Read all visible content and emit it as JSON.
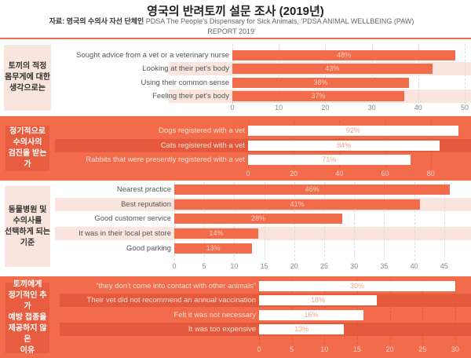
{
  "header": {
    "title": "영국의 반려토끼 설문 조사 (2019년)",
    "source_label": "자료: 영국의 수의사 자선 단체인",
    "source_text": "PDSA The People's Dispensary for Sick Animals, 'PDSA ANIMAL WELLBEING (PAW) REPORT 2019'"
  },
  "colors": {
    "accent": "#f26b4a",
    "light_band": "#fae5de",
    "dark_band": "#e55a3d"
  },
  "chart_data": [
    {
      "type": "bar",
      "orientation": "horizontal",
      "title": "토끼의 적정\n몸무게에 대한\n생각으로는",
      "categories": [
        "Sought advice from a vet or a veterinary nurse",
        "Looking at their pet's body",
        "Using their common sense",
        "Feeling their pet's body"
      ],
      "values": [
        48,
        43,
        38,
        37
      ],
      "labels": [
        "48%",
        "43%",
        "38%",
        "37%"
      ],
      "xlim": [
        0,
        50
      ],
      "ticks": [
        "0",
        "10",
        "20",
        "30",
        "40",
        "50"
      ],
      "tick_values": [
        0,
        10,
        20,
        30,
        40,
        50
      ]
    },
    {
      "type": "bar",
      "orientation": "horizontal",
      "title": "정기적으로\n수의사의\n검진을 받는가",
      "categories": [
        "Dogs registered with a vet",
        "Cats registered with a vet",
        "Rabbits that were presently registered with a vet"
      ],
      "values": [
        92,
        84,
        71
      ],
      "labels": [
        "92%",
        "84%",
        "71%"
      ],
      "xlim": [
        0,
        92
      ],
      "ticks": [
        "0",
        "20",
        "40",
        "60",
        "80"
      ],
      "tick_values": [
        0,
        20,
        40,
        60,
        80
      ]
    },
    {
      "type": "bar",
      "orientation": "horizontal",
      "title": "동물병원 및\n수의사를\n선택하게 되는\n기준",
      "categories": [
        "Nearest practice",
        "Best reputation",
        "Good customer service",
        "It was in their local pet store",
        "Good parking"
      ],
      "values": [
        46,
        41,
        28,
        14,
        13
      ],
      "labels": [
        "46%",
        "41%",
        "28%",
        "14%",
        "13%"
      ],
      "xlim": [
        0,
        46
      ],
      "ticks": [
        "0",
        "5",
        "10",
        "15",
        "20",
        "25",
        "30",
        "35",
        "40",
        "45"
      ],
      "tick_values": [
        0,
        5,
        10,
        15,
        20,
        25,
        30,
        35,
        40,
        45
      ]
    },
    {
      "type": "bar",
      "orientation": "horizontal",
      "title": "토끼에게\n정기적인 추가\n예방 접종을\n제공하지 않은\n이유",
      "categories": [
        "“they don't come into contact with other animals”",
        "Their vet did not recommend an annual vaccination",
        "Felt it was not necessary",
        "It was too expensive"
      ],
      "values": [
        30,
        18,
        16,
        13
      ],
      "labels": [
        "30%",
        "18%",
        "16%",
        "13%"
      ],
      "xlim": [
        0,
        30
      ],
      "ticks": [
        "0",
        "5",
        "10",
        "15",
        "20",
        "25",
        "30"
      ],
      "tick_values": [
        0,
        5,
        10,
        15,
        20,
        25,
        30
      ]
    }
  ]
}
